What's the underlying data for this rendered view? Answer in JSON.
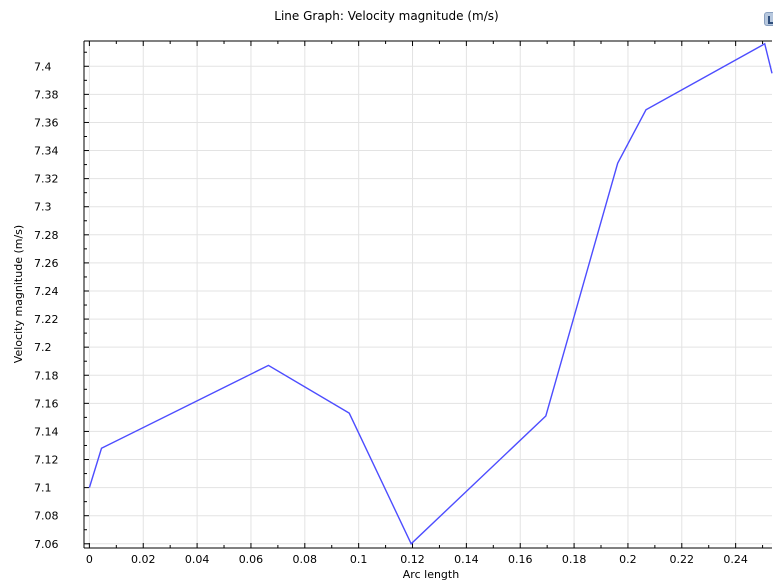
{
  "chart_data": {
    "type": "line",
    "title": "Line Graph: Velocity magnitude (m/s)",
    "xlabel": "Arc length",
    "ylabel": "Velocity magnitude (m/s)",
    "xlim": [
      -0.002,
      0.2535
    ],
    "ylim": [
      7.057,
      7.418
    ],
    "x_ticks": [
      0,
      0.02,
      0.04,
      0.06,
      0.08,
      0.1,
      0.12,
      0.14,
      0.16,
      0.18,
      0.2,
      0.22,
      0.24
    ],
    "x_tick_labels": [
      "0",
      "0.02",
      "0.04",
      "0.06",
      "0.08",
      "0.1",
      "0.12",
      "0.14",
      "0.16",
      "0.18",
      "0.2",
      "0.22",
      "0.24"
    ],
    "y_ticks": [
      7.06,
      7.08,
      7.1,
      7.12,
      7.14,
      7.16,
      7.18,
      7.2,
      7.22,
      7.24,
      7.26,
      7.28,
      7.3,
      7.32,
      7.34,
      7.36,
      7.38,
      7.4
    ],
    "y_tick_labels": [
      "7.06",
      "7.08",
      "7.1",
      "7.12",
      "7.14",
      "7.16",
      "7.18",
      "7.2",
      "7.22",
      "7.24",
      "7.26",
      "7.28",
      "7.3",
      "7.32",
      "7.34",
      "7.36",
      "7.38",
      "7.4"
    ],
    "grid": true,
    "series": [
      {
        "color": "#4d4dff",
        "x": [
          0,
          0.0045,
          0.0665,
          0.0965,
          0.1195,
          0.1695,
          0.1962,
          0.2067,
          0.2508,
          0.2535
        ],
        "y": [
          7.1,
          7.128,
          7.187,
          7.153,
          7.06,
          7.151,
          7.331,
          7.369,
          7.416,
          7.395
        ]
      }
    ]
  },
  "icons": {
    "corner": "graphics-toolbar-icon"
  }
}
